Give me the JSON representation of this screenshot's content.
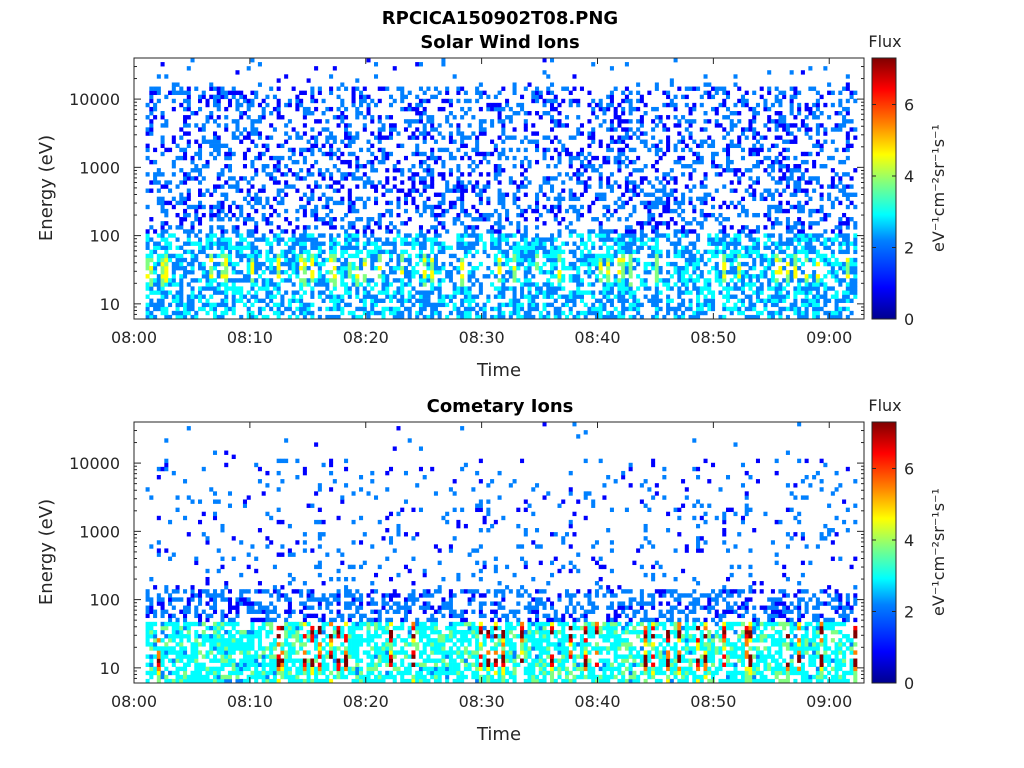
{
  "figure": {
    "title": "RPCICA150902T08.PNG"
  },
  "colormap": [
    "#00008f",
    "#0000ff",
    "#0080ff",
    "#00ffff",
    "#80ff80",
    "#ffff00",
    "#ff8000",
    "#ff0000",
    "#800000"
  ],
  "chart_data": [
    {
      "type": "heatmap",
      "title": "Solar Wind Ions",
      "xlabel": "Time",
      "ylabel": "Energy (eV)",
      "x_range": [
        "08:00",
        "09:03"
      ],
      "x_ticks": [
        "08:00",
        "08:10",
        "08:20",
        "08:30",
        "08:40",
        "08:50",
        "09:00"
      ],
      "y_scale": "log",
      "ylim": [
        6,
        40000
      ],
      "y_ticks": [
        "10",
        "100",
        "1000",
        "10000"
      ],
      "data_start": "08:01",
      "colorbar": {
        "title": "Flux",
        "label": "eV⁻¹cm⁻²sr⁻¹s⁻¹",
        "range": [
          0,
          7.3
        ],
        "ticks": [
          "0",
          "2",
          "4",
          "6"
        ]
      },
      "hotspots_eV": [
        24,
        38
      ],
      "description_density": "sparse high-energy counts up to ~15000 eV, denser below 100 eV"
    },
    {
      "type": "heatmap",
      "title": "Cometary Ions",
      "xlabel": "Time",
      "ylabel": "Energy (eV)",
      "x_range": [
        "08:00",
        "09:03"
      ],
      "x_ticks": [
        "08:00",
        "08:10",
        "08:20",
        "08:30",
        "08:40",
        "08:50",
        "09:00"
      ],
      "y_scale": "log",
      "ylim": [
        6,
        40000
      ],
      "y_ticks": [
        "10",
        "100",
        "1000",
        "10000"
      ],
      "data_start": "08:01",
      "colorbar": {
        "title": "Flux",
        "label": "eV⁻¹cm⁻²sr⁻¹s⁻¹",
        "range": [
          0,
          7.3
        ],
        "ticks": [
          "0",
          "2",
          "4",
          "6"
        ]
      },
      "hotspots_eV": [
        12,
        30
      ],
      "description_density": "sparse counts up to ~10000 eV, intense band 10-40 eV"
    }
  ]
}
